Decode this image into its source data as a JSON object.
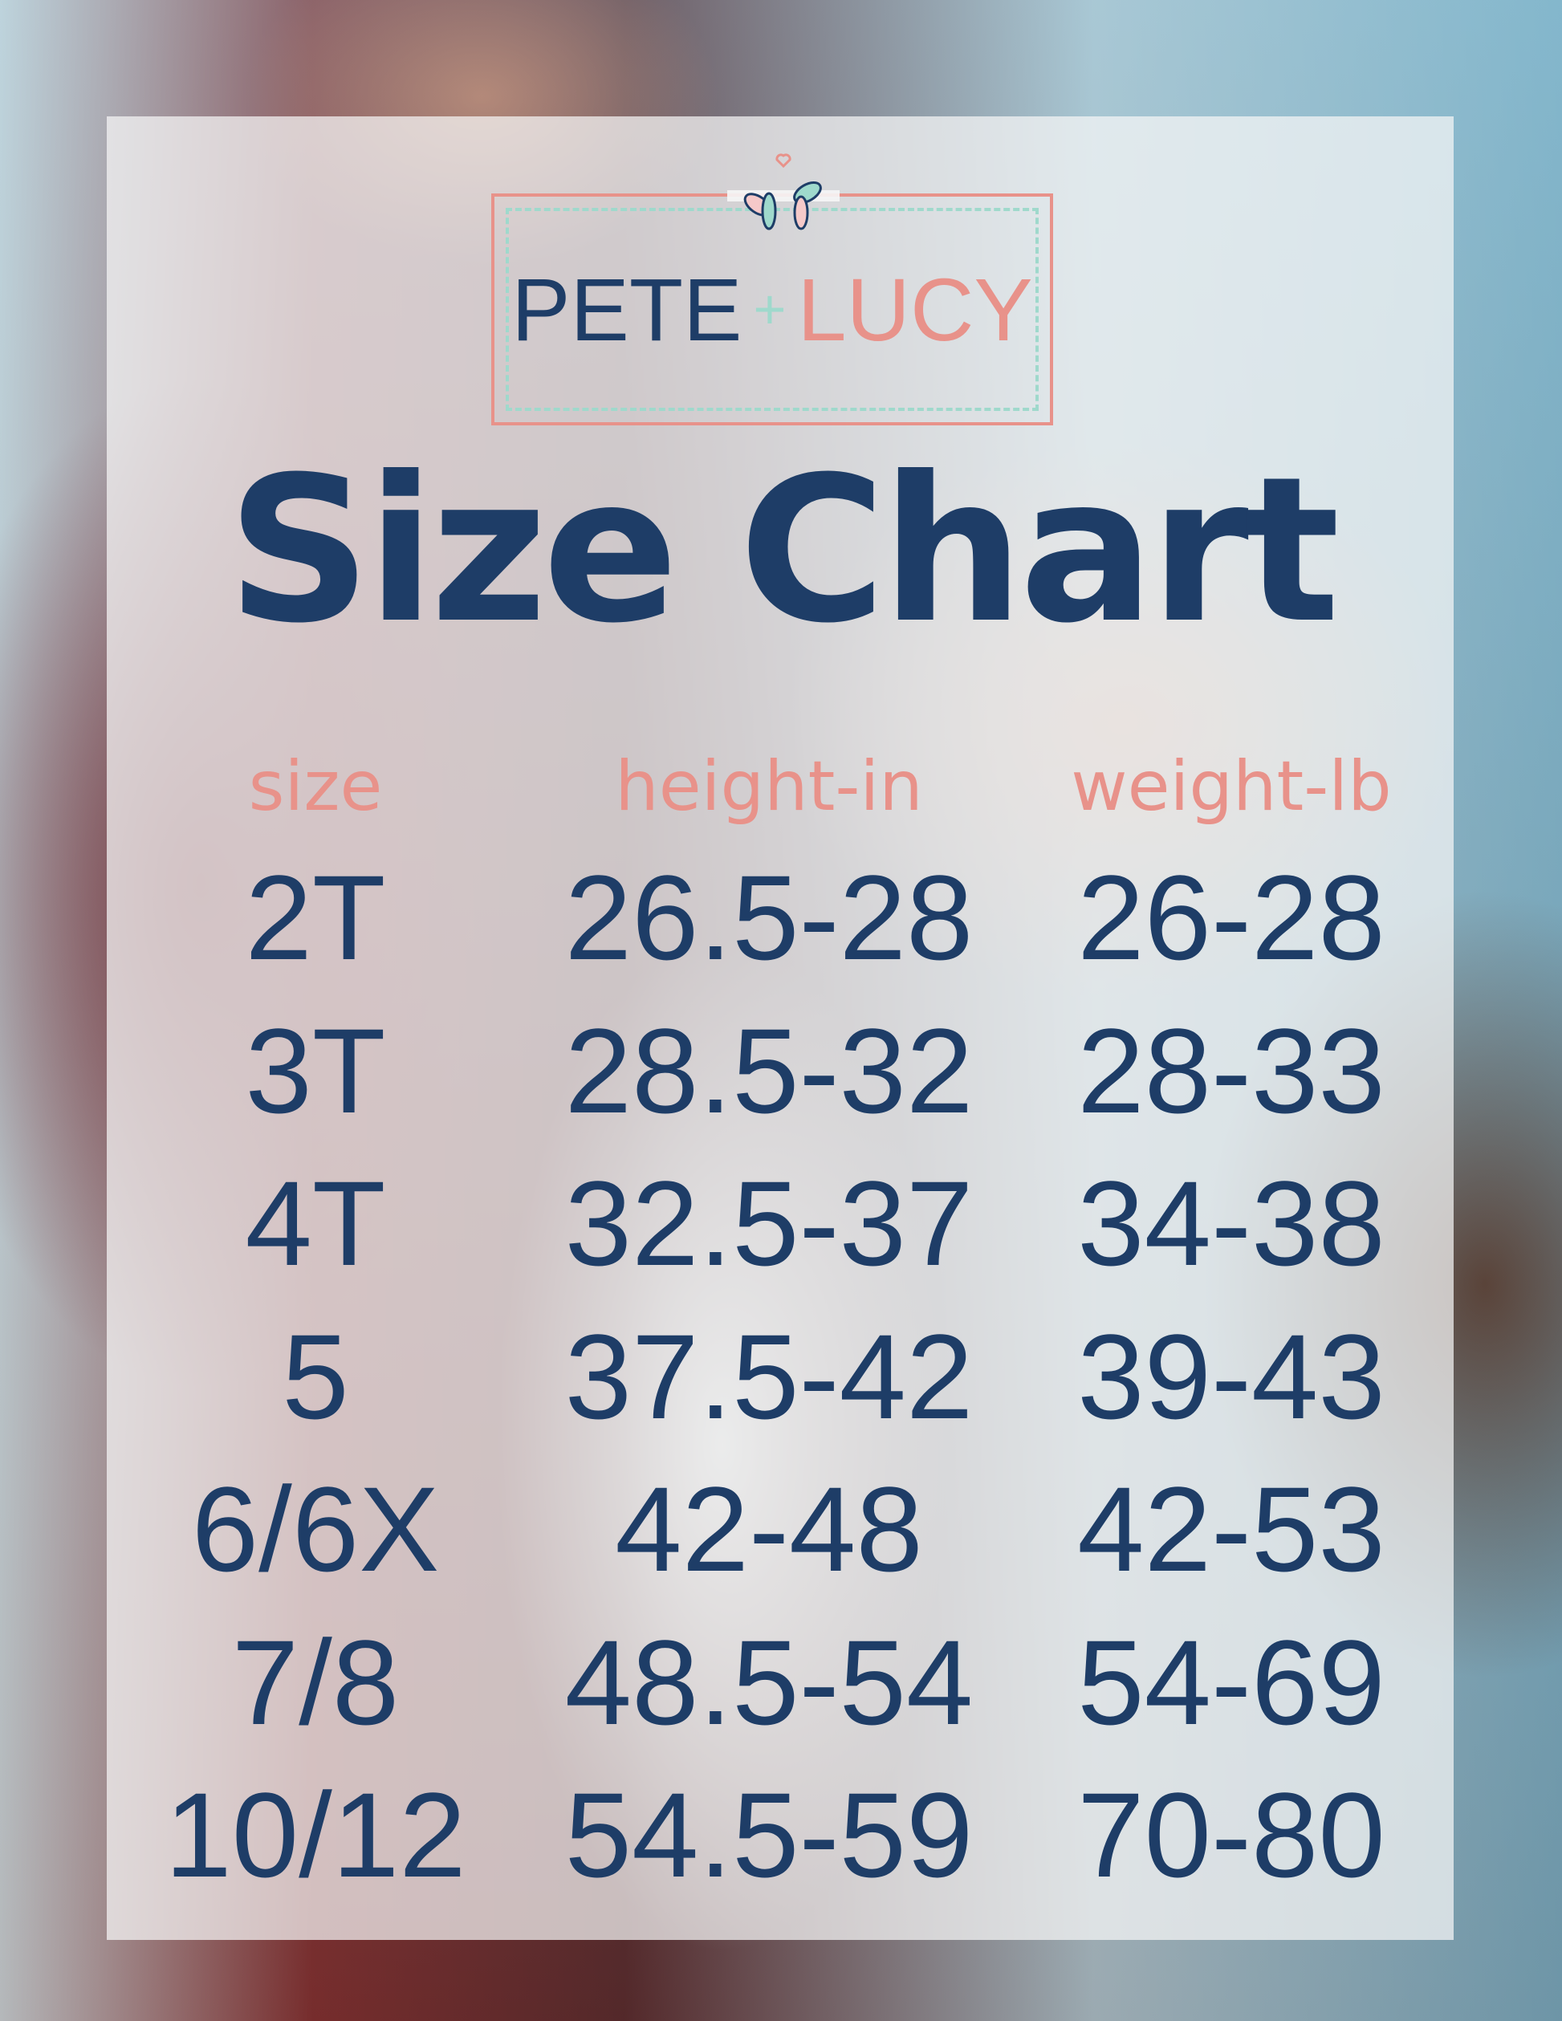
{
  "brand": {
    "name_left": "PETE",
    "plus": "+",
    "name_right": "LUCY"
  },
  "title": "Size Chart",
  "colors": {
    "navy": "#1e3d67",
    "coral": "#e8928a",
    "mint": "#9fd9cc"
  },
  "table": {
    "headers": [
      "size",
      "height-in",
      "weight-lb"
    ],
    "rows": [
      [
        "2T",
        "26.5-28",
        "26-28"
      ],
      [
        "3T",
        "28.5-32",
        "28-33"
      ],
      [
        "4T",
        "32.5-37",
        "34-38"
      ],
      [
        "5",
        "37.5-42",
        "39-43"
      ],
      [
        "6/6X",
        "42-48",
        "42-53"
      ],
      [
        "7/8",
        "48.5-54",
        "54-69"
      ],
      [
        "10/12",
        "54.5-59",
        "70-80"
      ]
    ]
  }
}
